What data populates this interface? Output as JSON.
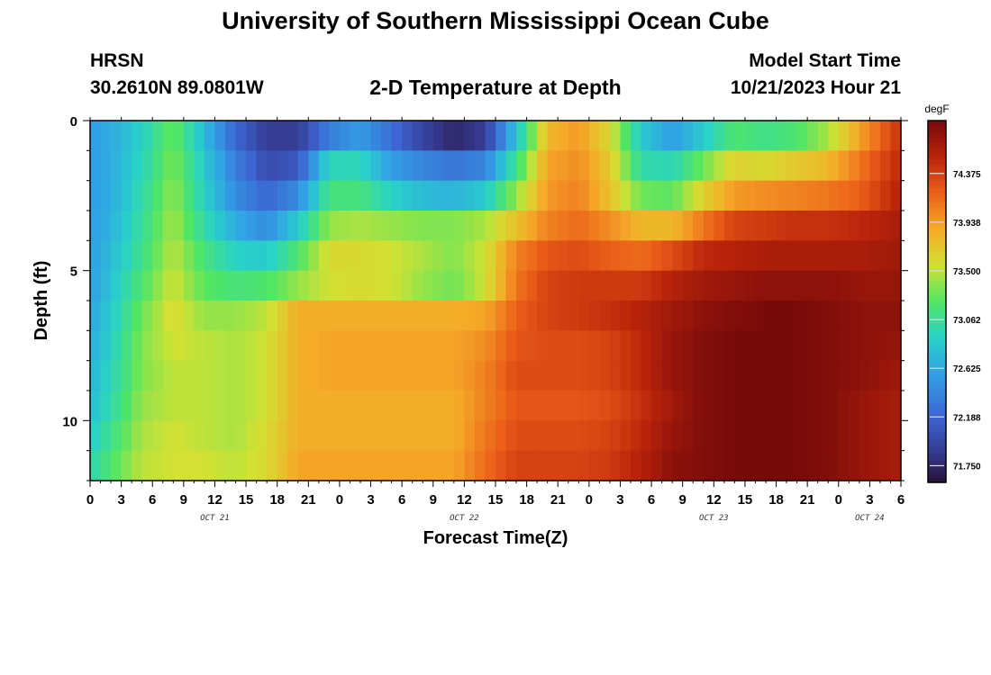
{
  "page": {
    "title": "University of Southern Mississippi Ocean Cube",
    "footer_title": "University of Southern Mississippi Ocean Cube",
    "station": "HRSN",
    "coordinates": "30.2610N  89.0801W",
    "model_start_label": "Model Start Time",
    "model_start_value": "10/21/2023 Hour 21"
  },
  "chart_data": {
    "type": "heatmap",
    "title": "2-D Temperature at Depth",
    "xlabel": "Forecast Time(Z)",
    "ylabel": "Depth (ft)",
    "x_tick_labels": [
      "0",
      "3",
      "6",
      "9",
      "12",
      "15",
      "18",
      "21",
      "0",
      "3",
      "6",
      "9",
      "12",
      "15",
      "18",
      "21",
      "0",
      "3",
      "6",
      "9",
      "12",
      "15",
      "18",
      "21",
      "0",
      "3",
      "6"
    ],
    "x_day_labels": [
      {
        "label": "OCT 21",
        "index": 4
      },
      {
        "label": "OCT 22",
        "index": 12
      },
      {
        "label": "OCT 23",
        "index": 20
      },
      {
        "label": "OCT 24",
        "index": 25
      }
    ],
    "y_tick_labels": [
      {
        "value": 0,
        "label": "0"
      },
      {
        "value": 5,
        "label": "5"
      },
      {
        "value": 10,
        "label": "10"
      }
    ],
    "ylim": [
      0,
      12
    ],
    "colorbar": {
      "unit": "degF",
      "ticks": [
        "74.375",
        "73.938",
        "73.500",
        "73.062",
        "72.625",
        "72.188",
        "71.750"
      ],
      "range": [
        71.6,
        74.85
      ]
    },
    "grid_time_nodes": [
      0,
      2,
      5,
      8,
      11,
      14,
      17,
      20,
      23,
      26,
      29,
      32,
      35,
      38,
      41,
      44,
      47,
      50,
      53,
      56,
      59,
      62,
      65,
      68,
      71,
      74,
      78
    ],
    "grid_depths": [
      0.5,
      1.5,
      2.5,
      3.5,
      4.5,
      5.5,
      6.5,
      7.5,
      8.5,
      9.5,
      10.5,
      11.5
    ],
    "values": [
      [
        72.55,
        72.65,
        72.9,
        73.3,
        72.75,
        72.2,
        71.9,
        71.9,
        72.35,
        72.55,
        72.25,
        71.95,
        71.75,
        71.9,
        72.8,
        73.8,
        73.95,
        73.6,
        72.85,
        72.55,
        72.85,
        73.2,
        73.1,
        73.2,
        73.45,
        73.9,
        74.45
      ],
      [
        72.55,
        72.65,
        72.95,
        73.35,
        72.85,
        72.35,
        72.0,
        72.1,
        72.95,
        72.95,
        72.55,
        72.4,
        72.3,
        72.4,
        73.1,
        73.9,
        74.0,
        73.7,
        73.0,
        72.95,
        73.3,
        73.65,
        73.6,
        73.7,
        73.8,
        74.1,
        74.5
      ],
      [
        72.55,
        72.65,
        73.0,
        73.4,
        72.9,
        72.45,
        72.2,
        72.45,
        73.15,
        73.15,
        72.9,
        72.75,
        72.7,
        72.85,
        73.4,
        73.95,
        74.05,
        73.75,
        73.3,
        73.25,
        73.65,
        73.95,
        74.0,
        74.05,
        74.1,
        74.2,
        74.55
      ],
      [
        72.55,
        72.7,
        73.05,
        73.45,
        73.0,
        72.65,
        72.45,
        72.85,
        73.4,
        73.45,
        73.4,
        73.35,
        73.35,
        73.45,
        73.75,
        74.05,
        74.15,
        74.0,
        73.8,
        73.8,
        74.1,
        74.35,
        74.4,
        74.45,
        74.45,
        74.5,
        74.6
      ],
      [
        72.55,
        72.75,
        73.1,
        73.5,
        73.15,
        72.9,
        72.85,
        73.2,
        73.6,
        73.6,
        73.55,
        73.45,
        73.35,
        73.55,
        74.05,
        74.25,
        74.3,
        74.2,
        74.15,
        74.3,
        74.5,
        74.55,
        74.6,
        74.6,
        74.6,
        74.6,
        74.65
      ],
      [
        72.55,
        72.8,
        73.2,
        73.55,
        73.25,
        73.15,
        73.2,
        73.4,
        73.55,
        73.6,
        73.55,
        73.4,
        73.3,
        73.55,
        74.1,
        74.35,
        74.4,
        74.4,
        74.4,
        74.55,
        74.65,
        74.7,
        74.75,
        74.75,
        74.75,
        74.7,
        74.7
      ],
      [
        72.6,
        72.85,
        73.3,
        73.6,
        73.4,
        73.4,
        73.5,
        73.85,
        73.85,
        73.85,
        73.85,
        73.85,
        73.85,
        73.9,
        74.2,
        74.35,
        74.4,
        74.45,
        74.55,
        74.65,
        74.75,
        74.8,
        74.85,
        74.85,
        74.8,
        74.75,
        74.75
      ],
      [
        72.65,
        72.9,
        73.35,
        73.55,
        73.5,
        73.45,
        73.55,
        73.85,
        73.9,
        73.9,
        73.9,
        73.9,
        73.9,
        74.0,
        74.25,
        74.3,
        74.3,
        74.35,
        74.5,
        74.7,
        74.8,
        74.85,
        74.85,
        74.85,
        74.8,
        74.75,
        74.7
      ],
      [
        72.7,
        72.95,
        73.35,
        73.5,
        73.5,
        73.45,
        73.55,
        73.85,
        73.9,
        73.9,
        73.9,
        73.9,
        73.9,
        74.05,
        74.3,
        74.3,
        74.3,
        74.35,
        74.5,
        74.7,
        74.8,
        74.85,
        74.85,
        74.85,
        74.8,
        74.75,
        74.65
      ],
      [
        72.75,
        73.0,
        73.4,
        73.5,
        73.5,
        73.45,
        73.55,
        73.85,
        73.85,
        73.85,
        73.85,
        73.85,
        73.85,
        74.05,
        74.25,
        74.25,
        74.25,
        74.3,
        74.45,
        74.65,
        74.8,
        74.85,
        74.85,
        74.85,
        74.8,
        74.7,
        74.6
      ],
      [
        72.85,
        73.1,
        73.45,
        73.55,
        73.5,
        73.45,
        73.6,
        73.85,
        73.85,
        73.85,
        73.85,
        73.85,
        73.85,
        74.1,
        74.3,
        74.3,
        74.3,
        74.35,
        74.5,
        74.7,
        74.8,
        74.85,
        74.85,
        74.85,
        74.8,
        74.7,
        74.6
      ],
      [
        72.95,
        73.2,
        73.5,
        73.55,
        73.55,
        73.5,
        73.6,
        73.9,
        73.9,
        73.9,
        73.9,
        73.9,
        73.9,
        74.15,
        74.35,
        74.35,
        74.35,
        74.4,
        74.55,
        74.75,
        74.8,
        74.85,
        74.85,
        74.85,
        74.8,
        74.7,
        74.6
      ]
    ]
  }
}
